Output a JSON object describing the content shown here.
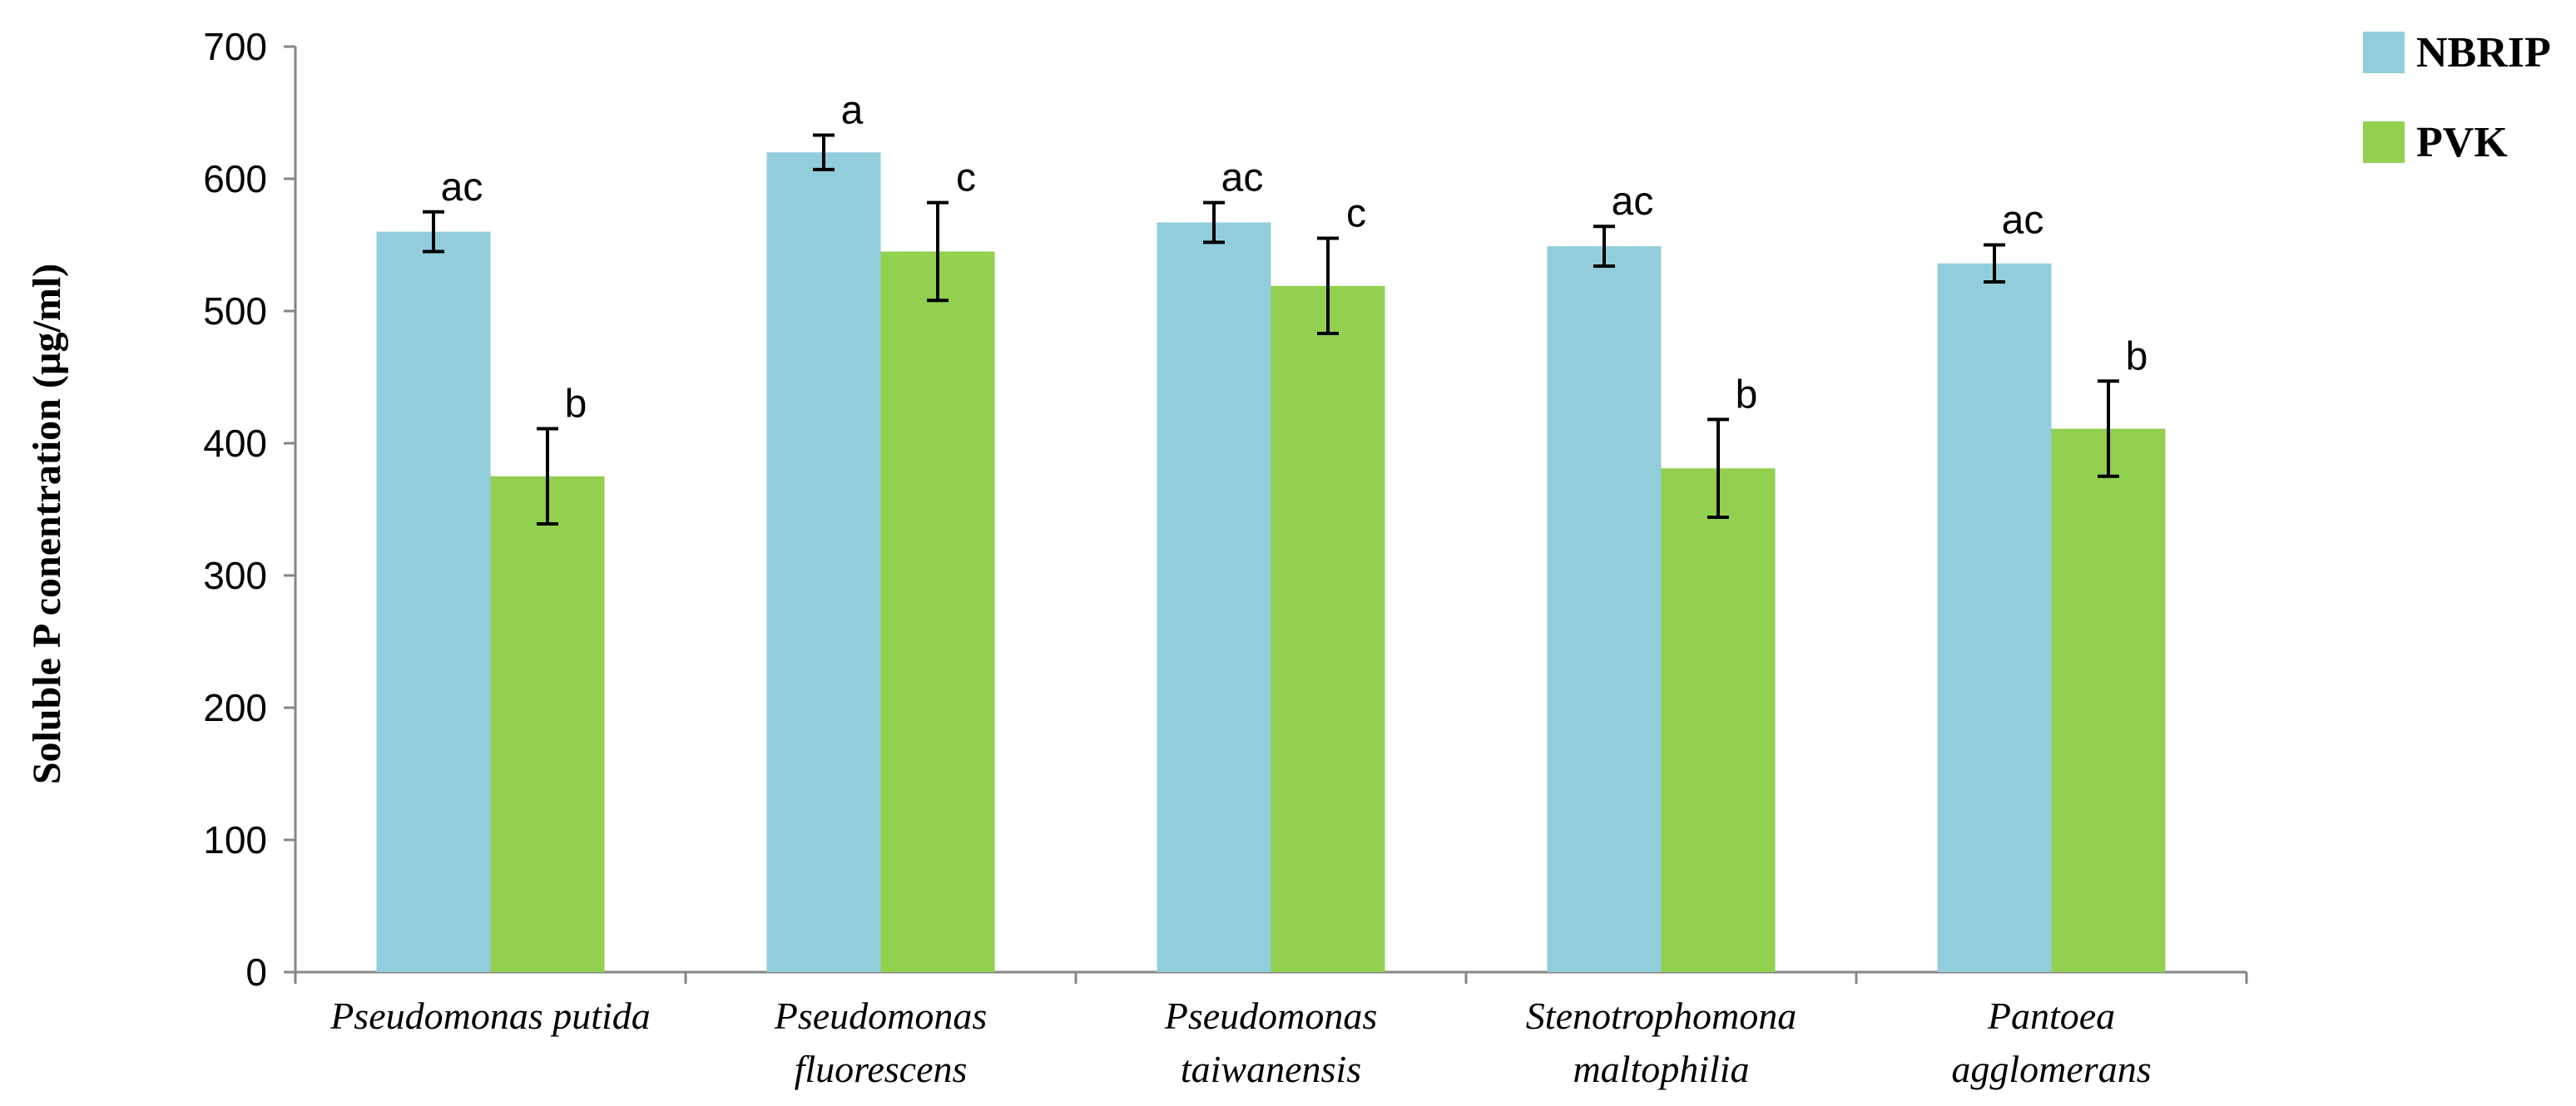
{
  "chart_data": {
    "type": "bar",
    "title": "",
    "xlabel": "",
    "ylabel": "Soluble P conentration (µg/ml)",
    "ylim": [
      0,
      700
    ],
    "yticks": [
      0,
      100,
      200,
      300,
      400,
      500,
      600,
      700
    ],
    "grid": false,
    "legend_position": "top-right",
    "categories": [
      [
        "Pseudomonas putida"
      ],
      [
        "Pseudomonas",
        "fluorescens"
      ],
      [
        "Pseudomonas",
        "taiwanensis"
      ],
      [
        "Stenotrophomona",
        "maltophilia"
      ],
      [
        "Pantoea",
        "agglomerans"
      ]
    ],
    "series": [
      {
        "name": "NBRIP",
        "color": "#92CDDC",
        "values": [
          560,
          620,
          567,
          549,
          536
        ],
        "errors": [
          15,
          13,
          15,
          15,
          14
        ],
        "labels": [
          "ac",
          "a",
          "ac",
          "ac",
          "ac"
        ]
      },
      {
        "name": "PVK",
        "color": "#92D050",
        "values": [
          375,
          545,
          519,
          381,
          411
        ],
        "errors": [
          36,
          37,
          36,
          37,
          36
        ],
        "labels": [
          "b",
          "c",
          "c",
          "b",
          "b"
        ]
      }
    ]
  }
}
